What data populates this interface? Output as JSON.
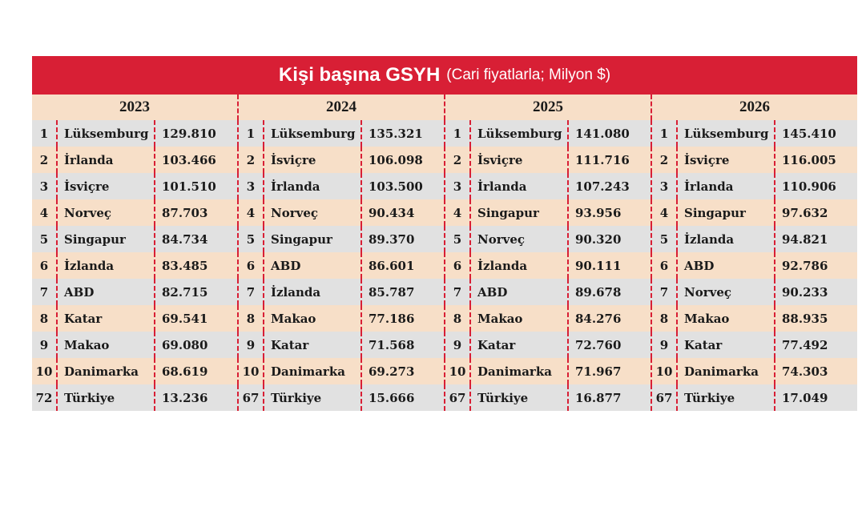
{
  "header": {
    "title_bold": "Kişi başına GSYH",
    "title_sub": "(Cari fiyatlarla; Milyon $)"
  },
  "colors": {
    "title_background": "#d81f35",
    "row_light": "#f7dfc8",
    "row_gray": "#e1e1e1",
    "dashed_divider": "#d81f35"
  },
  "chart_data": {
    "type": "table",
    "title": "Kişi başına GSYH (Cari fiyatlarla; Milyon $)",
    "years": [
      {
        "year": "2023",
        "rows": [
          {
            "rank": "1",
            "country": "Lüksemburg",
            "value": "129.810"
          },
          {
            "rank": "2",
            "country": "İrlanda",
            "value": "103.466"
          },
          {
            "rank": "3",
            "country": "İsviçre",
            "value": "101.510"
          },
          {
            "rank": "4",
            "country": "Norveç",
            "value": "87.703"
          },
          {
            "rank": "5",
            "country": "Singapur",
            "value": "84.734"
          },
          {
            "rank": "6",
            "country": "İzlanda",
            "value": "83.485"
          },
          {
            "rank": "7",
            "country": "ABD",
            "value": "82.715"
          },
          {
            "rank": "8",
            "country": "Katar",
            "value": "69.541"
          },
          {
            "rank": "9",
            "country": "Makao",
            "value": "69.080"
          },
          {
            "rank": "10",
            "country": "Danimarka",
            "value": "68.619"
          },
          {
            "rank": "72",
            "country": "Türkiye",
            "value": "13.236"
          }
        ]
      },
      {
        "year": "2024",
        "rows": [
          {
            "rank": "1",
            "country": "Lüksemburg",
            "value": "135.321"
          },
          {
            "rank": "2",
            "country": "İsviçre",
            "value": "106.098"
          },
          {
            "rank": "3",
            "country": "İrlanda",
            "value": "103.500"
          },
          {
            "rank": "4",
            "country": "Norveç",
            "value": "90.434"
          },
          {
            "rank": "5",
            "country": "Singapur",
            "value": "89.370"
          },
          {
            "rank": "6",
            "country": "ABD",
            "value": "86.601"
          },
          {
            "rank": "7",
            "country": "İzlanda",
            "value": "85.787"
          },
          {
            "rank": "8",
            "country": "Makao",
            "value": "77.186"
          },
          {
            "rank": "9",
            "country": "Katar",
            "value": "71.568"
          },
          {
            "rank": "10",
            "country": "Danimarka",
            "value": "69.273"
          },
          {
            "rank": "67",
            "country": "Türkiye",
            "value": "15.666"
          }
        ]
      },
      {
        "year": "2025",
        "rows": [
          {
            "rank": "1",
            "country": "Lüksemburg",
            "value": "141.080"
          },
          {
            "rank": "2",
            "country": "İsviçre",
            "value": "111.716"
          },
          {
            "rank": "3",
            "country": "İrlanda",
            "value": "107.243"
          },
          {
            "rank": "4",
            "country": "Singapur",
            "value": "93.956"
          },
          {
            "rank": "5",
            "country": "Norveç",
            "value": "90.320"
          },
          {
            "rank": "6",
            "country": "İzlanda",
            "value": "90.111"
          },
          {
            "rank": "7",
            "country": "ABD",
            "value": "89.678"
          },
          {
            "rank": "8",
            "country": "Makao",
            "value": "84.276"
          },
          {
            "rank": "9",
            "country": "Katar",
            "value": "72.760"
          },
          {
            "rank": "10",
            "country": "Danimarka",
            "value": "71.967"
          },
          {
            "rank": "67",
            "country": "Türkiye",
            "value": "16.877"
          }
        ]
      },
      {
        "year": "2026",
        "rows": [
          {
            "rank": "1",
            "country": "Lüksemburg",
            "value": "145.410"
          },
          {
            "rank": "2",
            "country": "İsviçre",
            "value": "116.005"
          },
          {
            "rank": "3",
            "country": "İrlanda",
            "value": "110.906"
          },
          {
            "rank": "4",
            "country": "Singapur",
            "value": "97.632"
          },
          {
            "rank": "5",
            "country": "İzlanda",
            "value": "94.821"
          },
          {
            "rank": "6",
            "country": "ABD",
            "value": "92.786"
          },
          {
            "rank": "7",
            "country": "Norveç",
            "value": "90.233"
          },
          {
            "rank": "8",
            "country": "Makao",
            "value": "88.935"
          },
          {
            "rank": "9",
            "country": "Katar",
            "value": "77.492"
          },
          {
            "rank": "10",
            "country": "Danimarka",
            "value": "74.303"
          },
          {
            "rank": "67",
            "country": "Türkiye",
            "value": "17.049"
          }
        ]
      }
    ]
  }
}
